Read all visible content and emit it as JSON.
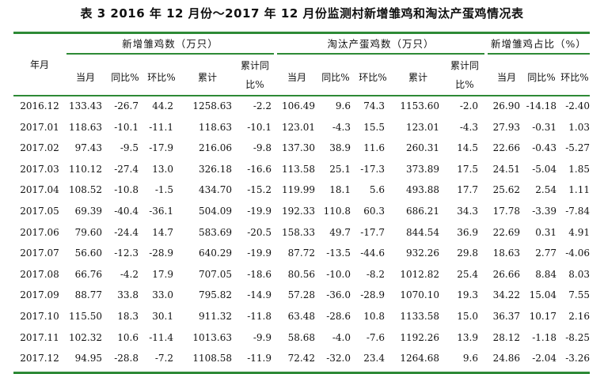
{
  "title": "表 3   2016 年 12 月份～2017 年 12 月份监测村新增雏鸡和淘汰产蛋鸡情况表",
  "header": {
    "row_label": "年月",
    "groups": [
      "新增雏鸡数（万只）",
      "淘汰产蛋鸡数（万只）",
      "新增雏鸡占比（%）"
    ],
    "sub_new": [
      "当月",
      "同比%",
      "环比%",
      "累计",
      "累计同",
      "比%"
    ],
    "sub_cull": [
      "当月",
      "同比%",
      "环比%",
      "累计",
      "累计同",
      "比%"
    ],
    "sub_share": [
      "当月",
      "同比%",
      "环比%"
    ]
  },
  "rows": [
    {
      "month": "2016.12",
      "v": [
        "133.43",
        "-26.7",
        "44.2",
        "1258.63",
        "-2.2",
        "106.49",
        "9.6",
        "74.3",
        "1153.60",
        "-2.0",
        "26.90",
        "-14.18",
        "-2.40"
      ]
    },
    {
      "month": "2017.01",
      "v": [
        "118.63",
        "-10.1",
        "-11.1",
        "118.63",
        "-10.1",
        "123.01",
        "-4.3",
        "15.5",
        "123.01",
        "-4.3",
        "27.93",
        "-0.31",
        "1.03"
      ]
    },
    {
      "month": "2017.02",
      "v": [
        "97.43",
        "-9.5",
        "-17.9",
        "216.06",
        "-9.8",
        "137.30",
        "38.9",
        "11.6",
        "260.31",
        "14.5",
        "22.66",
        "-0.43",
        "-5.27"
      ]
    },
    {
      "month": "2017.03",
      "v": [
        "110.12",
        "-27.4",
        "13.0",
        "326.18",
        "-16.6",
        "113.58",
        "25.1",
        "-17.3",
        "373.89",
        "17.5",
        "24.51",
        "-5.04",
        "1.85"
      ]
    },
    {
      "month": "2017.04",
      "v": [
        "108.52",
        "-10.8",
        "-1.5",
        "434.70",
        "-15.2",
        "119.99",
        "18.1",
        "5.6",
        "493.88",
        "17.7",
        "25.62",
        "2.54",
        "1.11"
      ]
    },
    {
      "month": "2017.05",
      "v": [
        "69.39",
        "-40.4",
        "-36.1",
        "504.09",
        "-19.9",
        "192.33",
        "110.8",
        "60.3",
        "686.21",
        "34.3",
        "17.78",
        "-3.39",
        "-7.84"
      ]
    },
    {
      "month": "2017.06",
      "v": [
        "79.60",
        "-24.4",
        "14.7",
        "583.69",
        "-20.5",
        "158.33",
        "49.7",
        "-17.7",
        "844.54",
        "36.9",
        "22.69",
        "0.31",
        "4.91"
      ]
    },
    {
      "month": "2017.07",
      "v": [
        "56.60",
        "-12.3",
        "-28.9",
        "640.29",
        "-19.9",
        "87.72",
        "-13.5",
        "-44.6",
        "932.26",
        "29.8",
        "18.63",
        "2.77",
        "-4.06"
      ]
    },
    {
      "month": "2017.08",
      "v": [
        "66.76",
        "-4.2",
        "17.9",
        "707.05",
        "-18.6",
        "80.56",
        "-10.0",
        "-8.2",
        "1012.82",
        "25.4",
        "26.66",
        "8.84",
        "8.03"
      ]
    },
    {
      "month": "2017.09",
      "v": [
        "88.77",
        "33.8",
        "33.0",
        "795.82",
        "-14.9",
        "57.28",
        "-36.0",
        "-28.9",
        "1070.10",
        "19.3",
        "34.22",
        "15.04",
        "7.55"
      ]
    },
    {
      "month": "2017.10",
      "v": [
        "115.50",
        "18.3",
        "30.1",
        "911.32",
        "-11.8",
        "63.48",
        "-28.6",
        "10.8",
        "1133.58",
        "15.0",
        "36.37",
        "10.17",
        "2.16"
      ]
    },
    {
      "month": "2017.11",
      "v": [
        "102.32",
        "10.6",
        "-11.4",
        "1013.63",
        "-9.9",
        "58.68",
        "-4.0",
        "-7.6",
        "1192.26",
        "13.9",
        "28.12",
        "-1.18",
        "-8.25"
      ]
    },
    {
      "month": "2017.12",
      "v": [
        "94.95",
        "-28.8",
        "-7.2",
        "1108.58",
        "-11.9",
        "72.42",
        "-32.0",
        "23.4",
        "1264.68",
        "9.6",
        "24.86",
        "-2.04",
        "-3.26"
      ]
    }
  ]
}
